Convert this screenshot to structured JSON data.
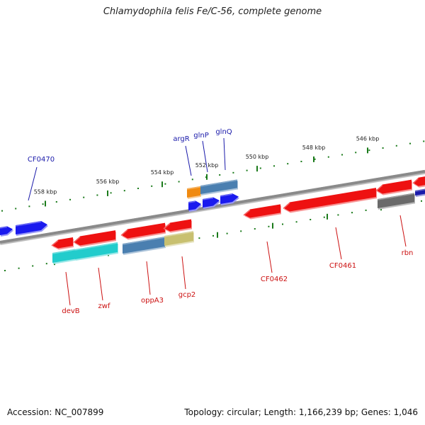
{
  "title": "Chlamydophila felis Fe/C-56, complete genome",
  "footer": {
    "accession": "Accession: NC_007899",
    "summary": "Topology: circular; Length: 1,166,239 bp; Genes: 1,046"
  },
  "scale_ticks": [
    "558 kbp",
    "556 kbp",
    "554 kbp",
    "552 kbp",
    "550 kbp",
    "548 kbp",
    "546 kbp"
  ],
  "gene_labels_top": [
    "CF0470",
    "argR",
    "glnP",
    "glnQ"
  ],
  "gene_labels_bottom": [
    "devB",
    "zwf",
    "oppA3",
    "gcp2",
    "CF0462",
    "CF0461",
    "rbn"
  ],
  "colors": {
    "backbone": "#8a8a8a",
    "gene_red": "#ee1111",
    "gene_blue": "#1a1aee",
    "cyan": "#22cccc",
    "steelblue": "#4a7fb0",
    "khaki": "#c8c070",
    "orange": "#f08a10",
    "gray": "#6a6a6a",
    "tick_green": "#1a7a1a",
    "label_blue": "#1a1aaa",
    "label_red": "#cc1111"
  }
}
